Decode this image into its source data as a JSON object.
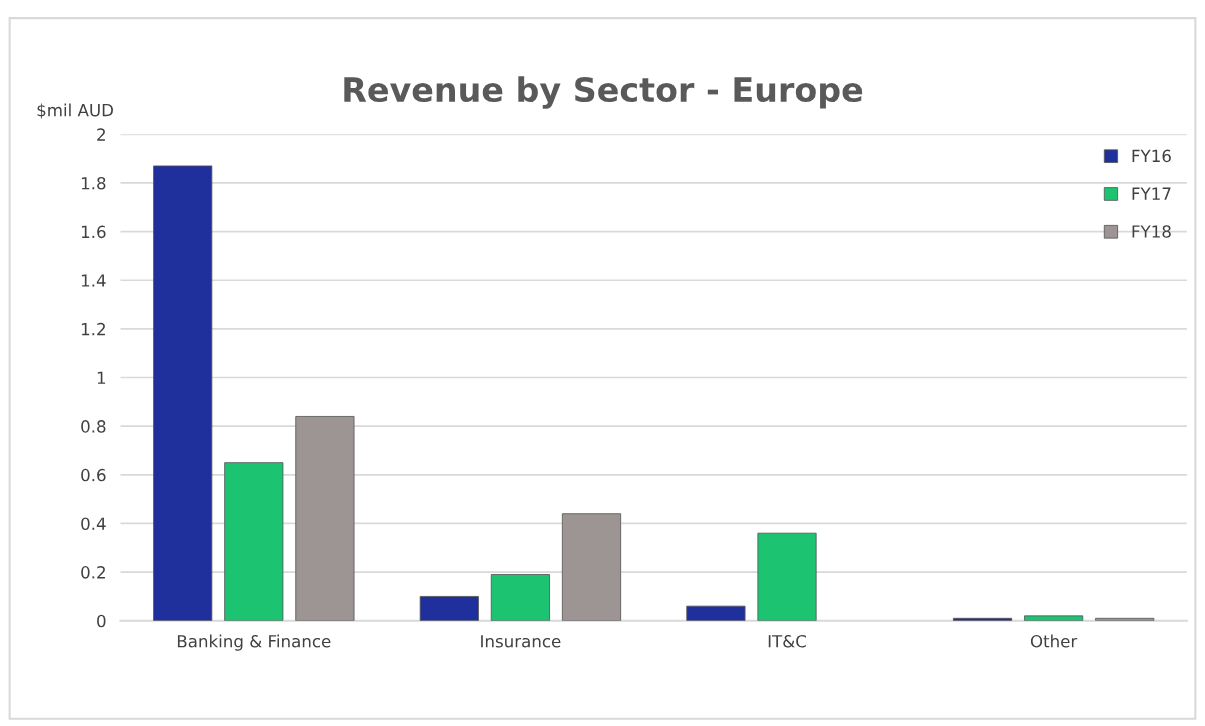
{
  "chart_data": {
    "type": "bar",
    "title": "Revenue by Sector - Europe",
    "ylabel": "$mil AUD",
    "categories": [
      "Banking & Finance",
      "Insurance",
      "IT&C",
      "Other"
    ],
    "series": [
      {
        "name": "FY16",
        "color": "#1f2f9c",
        "values": [
          1.87,
          0.1,
          0.06,
          0.01
        ]
      },
      {
        "name": "FY17",
        "color": "#1cc472",
        "values": [
          0.65,
          0.19,
          0.36,
          0.02
        ]
      },
      {
        "name": "FY18",
        "color": "#9c9593",
        "values": [
          0.84,
          0.44,
          null,
          0.01
        ]
      }
    ],
    "ylim": [
      0,
      2
    ],
    "yticks": [
      0,
      0.2,
      0.4,
      0.6,
      0.8,
      1,
      1.2,
      1.4,
      1.6,
      1.8,
      2
    ],
    "grid": "y",
    "legend": "top right"
  }
}
